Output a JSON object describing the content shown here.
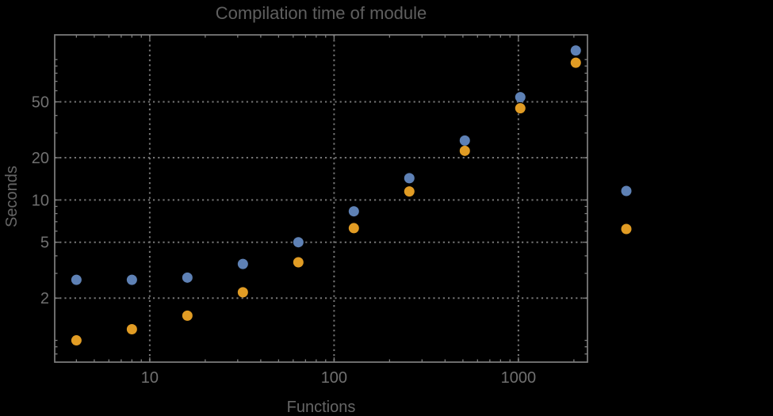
{
  "chart_data": {
    "type": "scatter",
    "title": "Compilation time of module",
    "xlabel": "Functions",
    "ylabel": "Seconds",
    "xscale": "log",
    "yscale": "log",
    "xlim": [
      3.05,
      2370
    ],
    "ylim": [
      0.7,
      150
    ],
    "x_major_ticks": [
      10,
      100,
      1000
    ],
    "x_tick_labels": [
      "10",
      "100",
      "1000"
    ],
    "y_major_ticks": [
      2,
      5,
      10,
      20,
      50
    ],
    "y_tick_labels": [
      "2",
      "5",
      "10",
      "20",
      "50"
    ],
    "x_gridlines": [
      10,
      100,
      1000
    ],
    "y_gridlines": [
      2,
      5,
      10,
      20,
      50
    ],
    "grid_on": true,
    "legend_position": "right-outside",
    "x": [
      4,
      8,
      16,
      32,
      64,
      128,
      256,
      512,
      1024,
      2048
    ],
    "series": [
      {
        "name": "series-blue",
        "color": "#5E81B5",
        "values": [
          2.7,
          2.7,
          2.8,
          3.5,
          5.0,
          8.3,
          14.3,
          26.5,
          54,
          116
        ]
      },
      {
        "name": "series-orange",
        "color": "#E19C24",
        "values": [
          1.0,
          1.2,
          1.5,
          2.2,
          3.6,
          6.3,
          11.5,
          22.4,
          45,
          95
        ]
      }
    ],
    "legend": {
      "items": [
        {
          "name": "legend-series-blue",
          "color": "#5E81B5",
          "label": ""
        },
        {
          "name": "legend-series-orange",
          "color": "#E19C24",
          "label": ""
        }
      ]
    },
    "colors": {
      "background": "#000000",
      "frame": "#7f7f7f",
      "grid": "#757575",
      "tick_label": "#707070",
      "axis_label": "#666666",
      "title": "#5f5f5f"
    }
  }
}
